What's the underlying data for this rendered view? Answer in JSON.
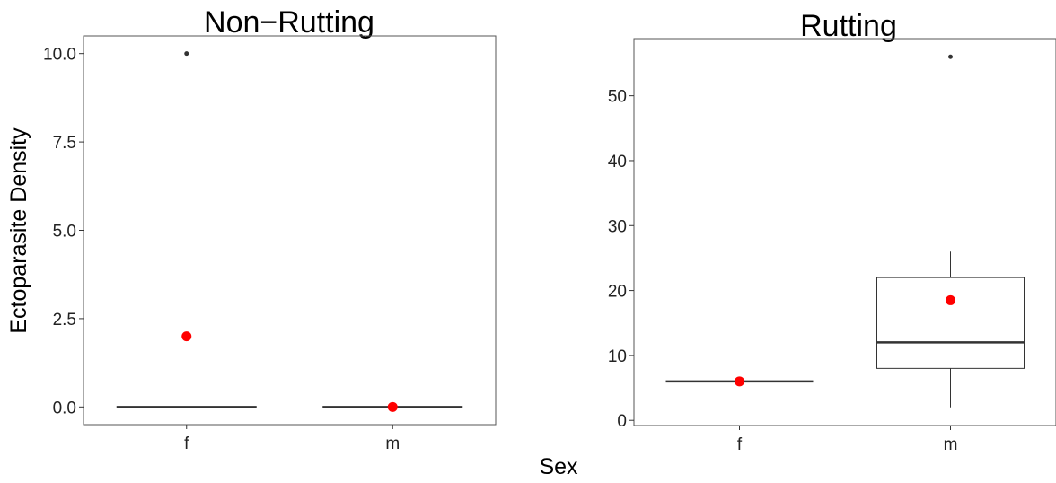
{
  "chart_data": [
    {
      "type": "box",
      "title": "Non−Rutting",
      "categories": [
        "f",
        "m"
      ],
      "ylim": [
        -0.5,
        10.5
      ],
      "yticks": [
        0.0,
        2.5,
        5.0,
        7.5,
        10.0
      ],
      "ytick_labels": [
        "0.0",
        "2.5",
        "5.0",
        "7.5",
        "10.0"
      ],
      "boxes": [
        {
          "category": "f",
          "q1": 0,
          "median": 0,
          "q3": 0,
          "whisker_low": 0,
          "whisker_high": 0,
          "outliers": [
            10
          ],
          "mean": 2
        },
        {
          "category": "m",
          "q1": 0,
          "median": 0,
          "q3": 0,
          "whisker_low": 0,
          "whisker_high": 0,
          "outliers": [],
          "mean": 0
        }
      ],
      "mean_color": "#ff0000",
      "box_color": "#333333",
      "grid": false
    },
    {
      "type": "box",
      "title": "Rutting",
      "categories": [
        "f",
        "m"
      ],
      "ylim": [
        -0.8,
        58.8
      ],
      "yticks": [
        0,
        10,
        20,
        30,
        40,
        50
      ],
      "ytick_labels": [
        "0",
        "10",
        "20",
        "30",
        "40",
        "50"
      ],
      "boxes": [
        {
          "category": "f",
          "q1": 6,
          "median": 6,
          "q3": 6,
          "whisker_low": 6,
          "whisker_high": 6,
          "outliers": [],
          "mean": 6
        },
        {
          "category": "m",
          "q1": 8,
          "median": 12,
          "q3": 22,
          "whisker_low": 2,
          "whisker_high": 26,
          "outliers": [
            56
          ],
          "mean": 18.5
        }
      ],
      "mean_color": "#ff0000",
      "box_color": "#333333",
      "grid": false
    }
  ],
  "labels": {
    "ylabel": "Ectoparasite Density",
    "xlabel": "Sex"
  }
}
